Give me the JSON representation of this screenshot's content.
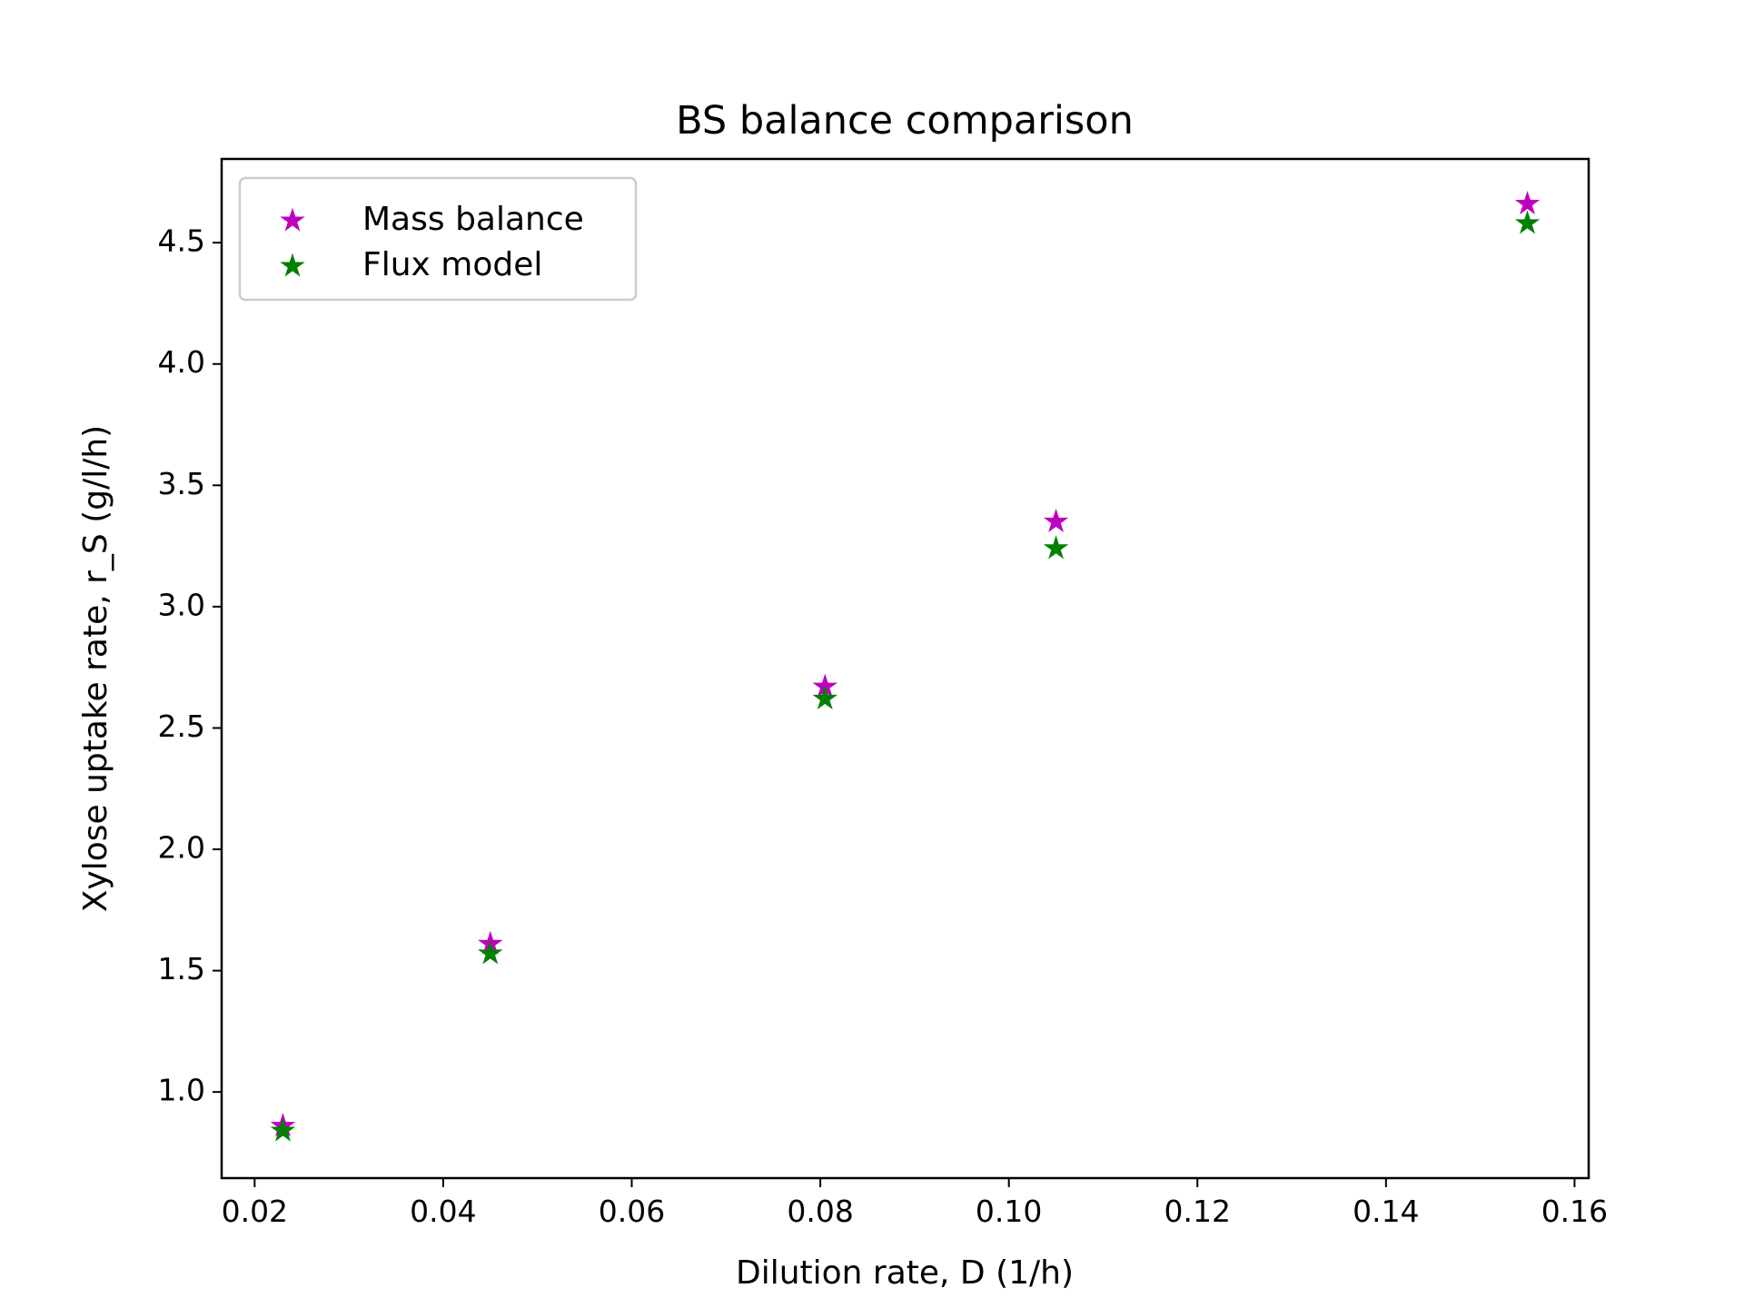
{
  "chart_data": {
    "type": "scatter",
    "title": "BS balance comparison",
    "xlabel": "Dilution rate, D (1/h)",
    "ylabel": "Xylose uptake rate, r_S (g/l/h)",
    "xlim": [
      0.0165,
      0.1615
    ],
    "ylim": [
      0.645,
      4.845
    ],
    "xticks": [
      0.02,
      0.04,
      0.06,
      0.08,
      0.1,
      0.12,
      0.14,
      0.16
    ],
    "xtick_labels": [
      "0.02",
      "0.04",
      "0.06",
      "0.08",
      "0.10",
      "0.12",
      "0.14",
      "0.16"
    ],
    "yticks": [
      1.0,
      1.5,
      2.0,
      2.5,
      3.0,
      3.5,
      4.0,
      4.5
    ],
    "ytick_labels": [
      "1.0",
      "1.5",
      "2.0",
      "2.5",
      "3.0",
      "3.5",
      "4.0",
      "4.5"
    ],
    "grid": false,
    "legend_position": "top-left",
    "marker": "star",
    "series": [
      {
        "name": "Mass balance",
        "color": "#bf00bf",
        "points": [
          {
            "x": 0.023,
            "y": 0.86
          },
          {
            "x": 0.045,
            "y": 1.61
          },
          {
            "x": 0.0805,
            "y": 2.67
          },
          {
            "x": 0.105,
            "y": 3.35
          },
          {
            "x": 0.155,
            "y": 4.66
          }
        ]
      },
      {
        "name": "Flux model",
        "color": "#008000",
        "points": [
          {
            "x": 0.023,
            "y": 0.84
          },
          {
            "x": 0.045,
            "y": 1.57
          },
          {
            "x": 0.0805,
            "y": 2.62
          },
          {
            "x": 0.105,
            "y": 3.24
          },
          {
            "x": 0.155,
            "y": 4.58
          }
        ]
      }
    ]
  }
}
